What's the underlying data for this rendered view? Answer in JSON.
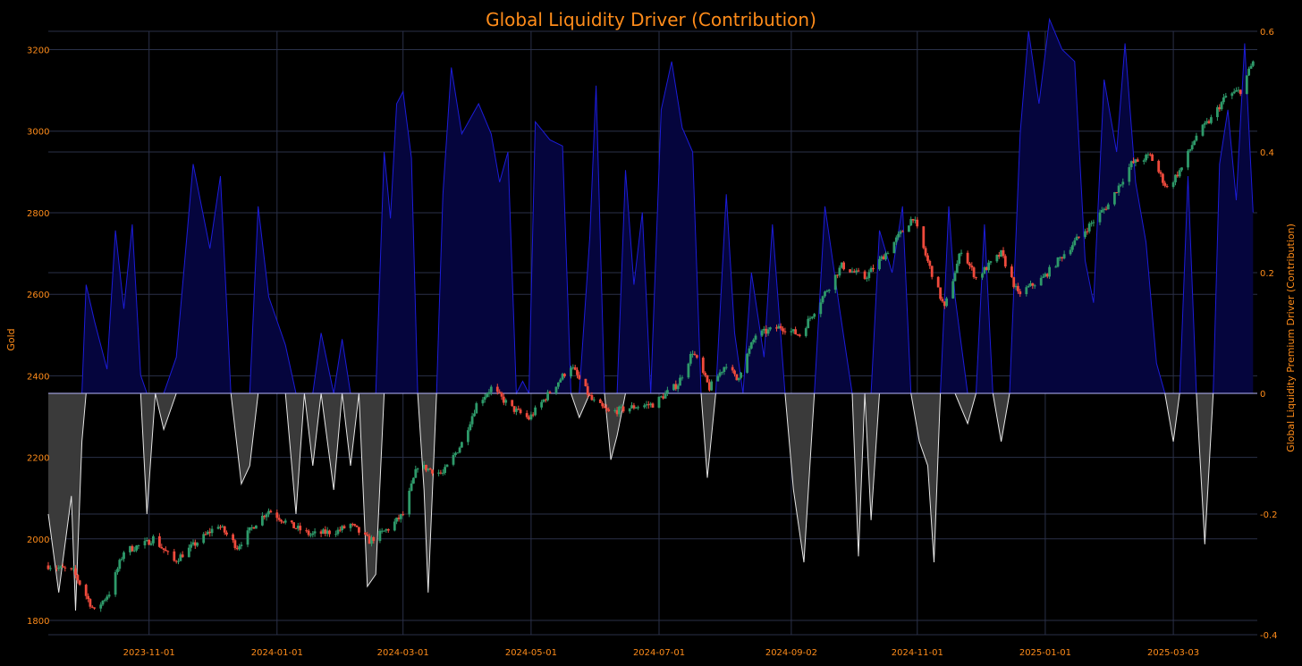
{
  "chart_data": {
    "type": "candlestick+area",
    "title": "Global Liquidity Driver (Contribution)",
    "ylabel_left": "Gold",
    "ylabel_right": "Global Liquidity Premium Driver (Contribution)",
    "xlabel": "",
    "grid": true,
    "legend": "none",
    "xlim": [
      "2023-09-14",
      "2025-04-12"
    ],
    "ylim_left": [
      1765,
      3245
    ],
    "ylim_right": [
      -0.4,
      0.6
    ],
    "x_ticks": [
      "2023-11-01",
      "2024-01-01",
      "2024-03-01",
      "2024-05-01",
      "2024-07-01",
      "2024-09-02",
      "2024-11-01",
      "2025-01-01",
      "2025-03-03"
    ],
    "y_ticks_left": [
      1800,
      2000,
      2200,
      2400,
      2600,
      2800,
      3000,
      3200
    ],
    "y_ticks_right": [
      -0.4,
      -0.2,
      0,
      0.2,
      0.4,
      0.6
    ],
    "colors": {
      "up": "#2e9a6a",
      "down": "#ef4a3c",
      "positive_fill": "#05053d",
      "positive_line": "#1c1cd9",
      "negative_fill": "#3a3a3a",
      "negative_line": "#e6e6e6",
      "text": "#ff8c1a"
    },
    "gold_anchors": [
      [
        "2023-09-14",
        1935
      ],
      [
        "2023-09-26",
        1920
      ],
      [
        "2023-10-06",
        1822
      ],
      [
        "2023-10-13",
        1868
      ],
      [
        "2023-10-20",
        1970
      ],
      [
        "2023-10-31",
        1990
      ],
      [
        "2023-11-03",
        2002
      ],
      [
        "2023-11-13",
        1945
      ],
      [
        "2023-11-27",
        2005
      ],
      [
        "2023-12-04",
        2035
      ],
      [
        "2023-12-13",
        1980
      ],
      [
        "2023-12-22",
        2040
      ],
      [
        "2023-12-28",
        2070
      ],
      [
        "2024-01-08",
        2032
      ],
      [
        "2024-01-17",
        2010
      ],
      [
        "2024-01-30",
        2020
      ],
      [
        "2024-02-05",
        2035
      ],
      [
        "2024-02-14",
        1995
      ],
      [
        "2024-02-23",
        2025
      ],
      [
        "2024-03-01",
        2060
      ],
      [
        "2024-03-08",
        2180
      ],
      [
        "2024-03-20",
        2160
      ],
      [
        "2024-03-29",
        2235
      ],
      [
        "2024-04-05",
        2330
      ],
      [
        "2024-04-12",
        2370
      ],
      [
        "2024-04-22",
        2320
      ],
      [
        "2024-04-30",
        2295
      ],
      [
        "2024-05-10",
        2360
      ],
      [
        "2024-05-20",
        2425
      ],
      [
        "2024-05-30",
        2340
      ],
      [
        "2024-06-07",
        2310
      ],
      [
        "2024-06-20",
        2325
      ],
      [
        "2024-06-28",
        2330
      ],
      [
        "2024-07-10",
        2380
      ],
      [
        "2024-07-17",
        2460
      ],
      [
        "2024-07-25",
        2370
      ],
      [
        "2024-08-02",
        2430
      ],
      [
        "2024-08-07",
        2390
      ],
      [
        "2024-08-16",
        2500
      ],
      [
        "2024-08-28",
        2520
      ],
      [
        "2024-09-06",
        2500
      ],
      [
        "2024-09-20",
        2620
      ],
      [
        "2024-09-26",
        2670
      ],
      [
        "2024-10-07",
        2640
      ],
      [
        "2024-10-17",
        2700
      ],
      [
        "2024-10-30",
        2790
      ],
      [
        "2024-11-06",
        2680
      ],
      [
        "2024-11-14",
        2565
      ],
      [
        "2024-11-22",
        2710
      ],
      [
        "2024-11-29",
        2640
      ],
      [
        "2024-12-11",
        2700
      ],
      [
        "2024-12-19",
        2600
      ],
      [
        "2024-12-31",
        2640
      ],
      [
        "2025-01-10",
        2700
      ],
      [
        "2025-01-24",
        2780
      ],
      [
        "2025-01-31",
        2820
      ],
      [
        "2025-02-11",
        2920
      ],
      [
        "2025-02-20",
        2940
      ],
      [
        "2025-02-28",
        2860
      ],
      [
        "2025-03-07",
        2910
      ],
      [
        "2025-03-14",
        2990
      ],
      [
        "2025-03-21",
        3030
      ],
      [
        "2025-03-28",
        3085
      ],
      [
        "2025-04-04",
        3100
      ],
      [
        "2025-04-10",
        3170
      ]
    ],
    "driver_anchors": [
      [
        "2023-09-14",
        -0.2
      ],
      [
        "2023-09-19",
        -0.33
      ],
      [
        "2023-09-25",
        -0.17
      ],
      [
        "2023-09-27",
        -0.36
      ],
      [
        "2023-09-30",
        -0.08
      ],
      [
        "2023-10-02",
        0.18
      ],
      [
        "2023-10-06",
        0.12
      ],
      [
        "2023-10-12",
        0.04
      ],
      [
        "2023-10-16",
        0.27
      ],
      [
        "2023-10-20",
        0.14
      ],
      [
        "2023-10-24",
        0.28
      ],
      [
        "2023-10-28",
        0.03
      ],
      [
        "2023-10-31",
        -0.2
      ],
      [
        "2023-11-04",
        0.0
      ],
      [
        "2023-11-08",
        -0.06
      ],
      [
        "2023-11-14",
        0.06
      ],
      [
        "2023-11-22",
        0.38
      ],
      [
        "2023-11-30",
        0.24
      ],
      [
        "2023-12-05",
        0.36
      ],
      [
        "2023-12-10",
        0.0
      ],
      [
        "2023-12-15",
        -0.15
      ],
      [
        "2023-12-19",
        -0.12
      ],
      [
        "2023-12-23",
        0.31
      ],
      [
        "2023-12-28",
        0.16
      ],
      [
        "2024-01-05",
        0.08
      ],
      [
        "2024-01-10",
        -0.2
      ],
      [
        "2024-01-14",
        0.0
      ],
      [
        "2024-01-18",
        -0.12
      ],
      [
        "2024-01-22",
        0.1
      ],
      [
        "2024-01-28",
        -0.16
      ],
      [
        "2024-02-01",
        0.09
      ],
      [
        "2024-02-05",
        -0.12
      ],
      [
        "2024-02-09",
        0.0
      ],
      [
        "2024-02-13",
        -0.32
      ],
      [
        "2024-02-17",
        -0.3
      ],
      [
        "2024-02-21",
        0.4
      ],
      [
        "2024-02-24",
        0.29
      ],
      [
        "2024-02-27",
        0.48
      ],
      [
        "2024-03-01",
        0.5
      ],
      [
        "2024-03-05",
        0.39
      ],
      [
        "2024-03-08",
        0.0
      ],
      [
        "2024-03-11",
        -0.16
      ],
      [
        "2024-03-13",
        -0.33
      ],
      [
        "2024-03-17",
        0.0
      ],
      [
        "2024-03-20",
        0.33
      ],
      [
        "2024-03-24",
        0.54
      ],
      [
        "2024-03-29",
        0.43
      ],
      [
        "2024-04-06",
        0.48
      ],
      [
        "2024-04-12",
        0.43
      ],
      [
        "2024-04-16",
        0.35
      ],
      [
        "2024-04-20",
        0.4
      ],
      [
        "2024-04-24",
        0.0
      ],
      [
        "2024-04-27",
        0.02
      ],
      [
        "2024-04-30",
        0.0
      ],
      [
        "2024-05-03",
        0.45
      ],
      [
        "2024-05-10",
        0.42
      ],
      [
        "2024-05-16",
        0.41
      ],
      [
        "2024-05-20",
        0.0
      ],
      [
        "2024-05-24",
        -0.04
      ],
      [
        "2024-05-29",
        0.26
      ],
      [
        "2024-06-01",
        0.51
      ],
      [
        "2024-06-05",
        0.0
      ],
      [
        "2024-06-08",
        -0.11
      ],
      [
        "2024-06-11",
        -0.07
      ],
      [
        "2024-06-15",
        0.37
      ],
      [
        "2024-06-19",
        0.18
      ],
      [
        "2024-06-23",
        0.3
      ],
      [
        "2024-06-27",
        0.0
      ],
      [
        "2024-07-02",
        0.47
      ],
      [
        "2024-07-07",
        0.55
      ],
      [
        "2024-07-12",
        0.44
      ],
      [
        "2024-07-17",
        0.4
      ],
      [
        "2024-07-21",
        0.0
      ],
      [
        "2024-07-24",
        -0.14
      ],
      [
        "2024-07-28",
        0.0
      ],
      [
        "2024-08-02",
        0.33
      ],
      [
        "2024-08-06",
        0.1
      ],
      [
        "2024-08-10",
        0.0
      ],
      [
        "2024-08-14",
        0.2
      ],
      [
        "2024-08-20",
        0.06
      ],
      [
        "2024-08-24",
        0.28
      ],
      [
        "2024-08-30",
        0.0
      ],
      [
        "2024-09-03",
        -0.16
      ],
      [
        "2024-09-08",
        -0.28
      ],
      [
        "2024-09-13",
        0.0
      ],
      [
        "2024-09-18",
        0.31
      ],
      [
        "2024-09-25",
        0.14
      ],
      [
        "2024-10-01",
        0.0
      ],
      [
        "2024-10-04",
        -0.27
      ],
      [
        "2024-10-07",
        0.0
      ],
      [
        "2024-10-10",
        -0.21
      ],
      [
        "2024-10-14",
        0.27
      ],
      [
        "2024-10-20",
        0.2
      ],
      [
        "2024-10-25",
        0.31
      ],
      [
        "2024-10-29",
        0.0
      ],
      [
        "2024-11-02",
        -0.08
      ],
      [
        "2024-11-06",
        -0.12
      ],
      [
        "2024-11-09",
        -0.28
      ],
      [
        "2024-11-12",
        0.0
      ],
      [
        "2024-11-16",
        0.31
      ],
      [
        "2024-11-19",
        0.16
      ],
      [
        "2024-11-25",
        -0.05
      ],
      [
        "2024-11-29",
        0.0
      ],
      [
        "2024-12-03",
        0.28
      ],
      [
        "2024-12-07",
        0.0
      ],
      [
        "2024-12-11",
        -0.08
      ],
      [
        "2024-12-15",
        0.0
      ],
      [
        "2024-12-20",
        0.43
      ],
      [
        "2024-12-24",
        0.6
      ],
      [
        "2024-12-29",
        0.48
      ],
      [
        "2025-01-03",
        0.62
      ],
      [
        "2025-01-09",
        0.57
      ],
      [
        "2025-01-15",
        0.55
      ],
      [
        "2025-01-20",
        0.22
      ],
      [
        "2025-01-24",
        0.15
      ],
      [
        "2025-01-29",
        0.52
      ],
      [
        "2025-02-04",
        0.4
      ],
      [
        "2025-02-08",
        0.58
      ],
      [
        "2025-02-13",
        0.35
      ],
      [
        "2025-02-18",
        0.25
      ],
      [
        "2025-02-23",
        0.05
      ],
      [
        "2025-02-27",
        0.0
      ],
      [
        "2025-03-03",
        -0.08
      ],
      [
        "2025-03-06",
        0.0
      ],
      [
        "2025-03-10",
        0.36
      ],
      [
        "2025-03-14",
        0.0
      ],
      [
        "2025-03-18",
        -0.25
      ],
      [
        "2025-03-22",
        0.0
      ],
      [
        "2025-03-25",
        0.38
      ],
      [
        "2025-03-29",
        0.47
      ],
      [
        "2025-04-02",
        0.32
      ],
      [
        "2025-04-06",
        0.58
      ],
      [
        "2025-04-10",
        0.3
      ]
    ]
  }
}
